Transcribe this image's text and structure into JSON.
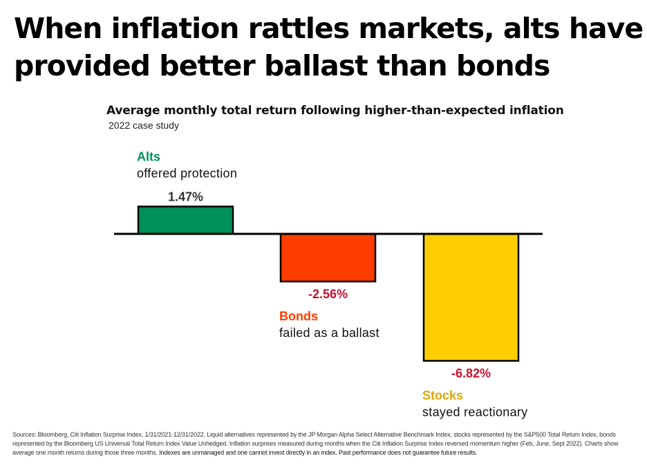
{
  "headline": {
    "line1": "When inflation rattles markets, alts have",
    "line2": "provided better ballast than bonds"
  },
  "chart_data": {
    "type": "bar",
    "title": "Average monthly total return following higher-than-expected inflation",
    "subtitle": "2022 case study",
    "categories": [
      "Alts",
      "Bonds",
      "Stocks"
    ],
    "values": [
      1.47,
      -2.56,
      -6.82
    ],
    "value_labels": [
      "1.47%",
      "-2.56%",
      "-6.82%"
    ],
    "descriptions": [
      "offered protection",
      "failed as a ballast",
      "stayed reactionary"
    ],
    "bar_colors": [
      "#00915a",
      "#ff3d00",
      "#ffce00"
    ],
    "name_colors": [
      "#00915a",
      "#ff3d00",
      "#d9a800"
    ],
    "positive_label_color": "#333333",
    "negative_label_color": "#c8102e",
    "axis_color": "#000000",
    "grid": false,
    "legend": "none"
  },
  "footnote": {
    "text": "Sources: Bloomberg, Citi Inflation Surprise Index, 1/31/2021-12/31/2022. Liquid alternatives represented by the JP Morgan Alpha Select Alternative Benchmark Index, stocks represented by the S&P500 Total Return Index, bonds represented by the Bloomberg US Universal Total Return Index Value Unhedged. Inflation surprises measured during months when the Citi Inflation Surprise Index reversed momentum higher (Feb, June, Sept 2022). Charts show average one month returns during those three months.",
    "emphasis": "Indexes are unmanaged and one cannot invest directly in an index. Past performance does not guarantee future results."
  }
}
